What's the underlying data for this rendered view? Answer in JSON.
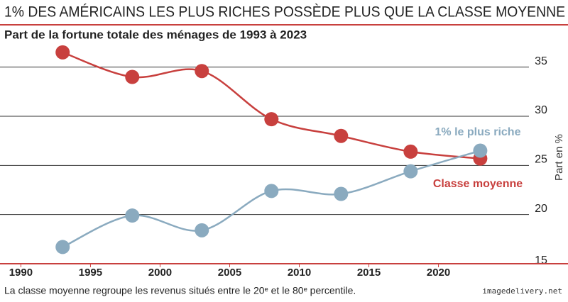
{
  "chart_data": {
    "type": "line",
    "title": "1% DES AMÉRICAINS LES PLUS RICHES POSSÈDE PLUS QUE LA CLASSE MOYENNE",
    "subtitle": "Part de la fortune totale des ménages de 1993 à 2023",
    "y_axis_label": "Part en %",
    "note": "La classe moyenne regroupe les revenus situés entre le 20ᵉ et le 80ᵉ percentile.",
    "source": "imagedelivery.net",
    "x": [
      1993,
      1998,
      2003,
      2008,
      2013,
      2018,
      2023
    ],
    "series": [
      {
        "name": "Classe moyenne",
        "color": "#c8403e",
        "values": [
          36.5,
          34.0,
          34.6,
          29.7,
          28.0,
          26.4,
          25.7
        ]
      },
      {
        "name": "1% le plus riche",
        "color": "#8aaabf",
        "values": [
          16.7,
          19.9,
          18.4,
          22.4,
          22.1,
          24.4,
          26.5
        ]
      }
    ],
    "xlim": [
      1988.5,
      2026.5
    ],
    "xticks": [
      1990,
      1995,
      2000,
      2005,
      2010,
      2015,
      2020
    ],
    "ylim": [
      15,
      37.5
    ],
    "yticks": [
      15,
      20,
      25,
      30,
      35
    ],
    "grid": true
  }
}
